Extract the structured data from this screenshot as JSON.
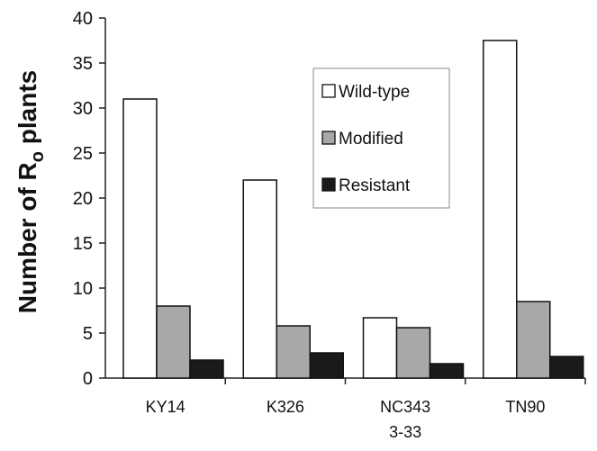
{
  "chart_data": {
    "type": "bar",
    "ylabel": "Number of R",
    "ylabel_subscript": "o",
    "ylabel_suffix": " plants",
    "ylim": [
      0,
      40
    ],
    "yticks": [
      0,
      5,
      10,
      15,
      20,
      25,
      30,
      35,
      40
    ],
    "categories": [
      {
        "line1": "KY14",
        "line2": ""
      },
      {
        "line1": "K326",
        "line2": ""
      },
      {
        "line1": "NC343",
        "line2": "3-33"
      },
      {
        "line1": "TN90",
        "line2": ""
      }
    ],
    "series": [
      {
        "name": "Wild-type",
        "color": "#ffffff",
        "values": [
          31,
          22,
          6.7,
          37.5
        ]
      },
      {
        "name": "Modified",
        "color": "#a8a8a8",
        "values": [
          8,
          5.8,
          5.6,
          8.5
        ]
      },
      {
        "name": "Resistant",
        "color": "#1a1a1a",
        "values": [
          2,
          2.8,
          1.6,
          2.4
        ]
      }
    ],
    "legend_position": "top-right",
    "grid": false
  }
}
